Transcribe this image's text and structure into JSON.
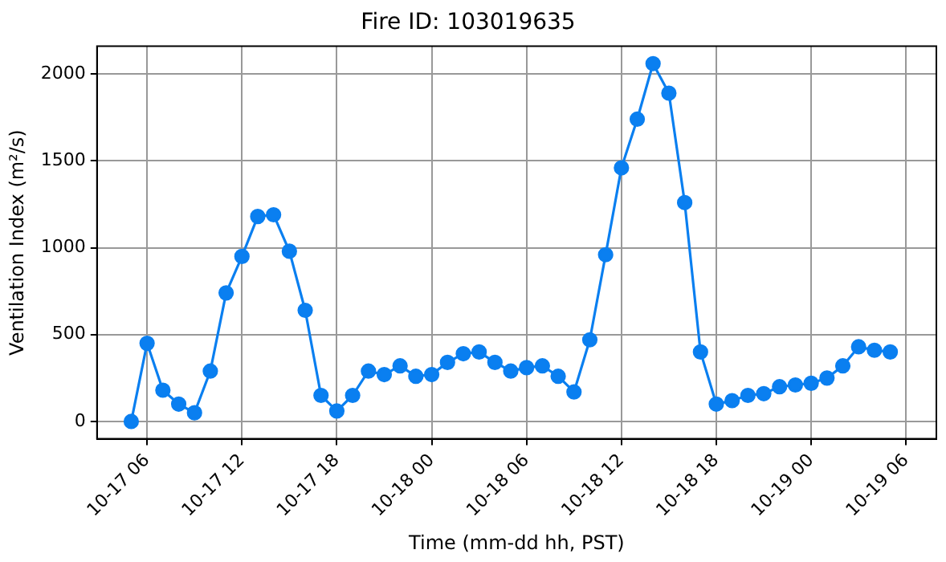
{
  "chart_data": {
    "type": "line",
    "title": "Fire ID: 103019635",
    "xlabel": "Time (mm-dd hh, PST)",
    "ylabel": "Ventilation Index (m²/s)",
    "x": [
      "--10-17T05:00",
      "--10-17T06:00",
      "--10-17T07:00",
      "--10-17T08:00",
      "--10-17T09:00",
      "--10-17T10:00",
      "--10-17T11:00",
      "--10-17T12:00",
      "--10-17T13:00",
      "--10-17T14:00",
      "--10-17T15:00",
      "--10-17T16:00",
      "--10-17T17:00",
      "--10-17T18:00",
      "--10-17T19:00",
      "--10-17T20:00",
      "--10-17T21:00",
      "--10-17T22:00",
      "--10-17T23:00",
      "--10-18T00:00",
      "--10-18T01:00",
      "--10-18T02:00",
      "--10-18T03:00",
      "--10-18T04:00",
      "--10-18T05:00",
      "--10-18T06:00",
      "--10-18T07:00",
      "--10-18T08:00",
      "--10-18T09:00",
      "--10-18T10:00",
      "--10-18T11:00",
      "--10-18T12:00",
      "--10-18T13:00",
      "--10-18T14:00",
      "--10-18T15:00",
      "--10-18T16:00",
      "--10-18T17:00",
      "--10-18T18:00",
      "--10-18T19:00",
      "--10-18T20:00",
      "--10-18T21:00",
      "--10-18T22:00",
      "--10-18T23:00",
      "--10-19T00:00",
      "--10-19T01:00",
      "--10-19T02:00",
      "--10-19T03:00",
      "--10-19T04:00",
      "--10-19T05:00"
    ],
    "series": [
      {
        "color": "#0a7ff0",
        "values": [
          0,
          450,
          180,
          100,
          50,
          290,
          740,
          950,
          1180,
          1190,
          980,
          640,
          150,
          60,
          150,
          290,
          270,
          320,
          260,
          270,
          340,
          390,
          400,
          340,
          290,
          310,
          320,
          260,
          170,
          470,
          960,
          1460,
          1740,
          2060,
          1890,
          1260,
          400,
          100,
          120,
          150,
          160,
          200,
          210,
          220,
          250,
          320,
          430,
          410,
          400
        ]
      }
    ],
    "xlim": [
      "--10-17T02:50",
      "--10-19T07:55"
    ],
    "xticks": [
      {
        "value": "--10-17T06:00",
        "label": "10-17 06"
      },
      {
        "value": "--10-17T12:00",
        "label": "10-17 12"
      },
      {
        "value": "--10-17T18:00",
        "label": "10-17 18"
      },
      {
        "value": "--10-18T00:00",
        "label": "10-18 00"
      },
      {
        "value": "--10-18T06:00",
        "label": "10-18 06"
      },
      {
        "value": "--10-18T12:00",
        "label": "10-18 12"
      },
      {
        "value": "--10-18T18:00",
        "label": "10-18 18"
      },
      {
        "value": "--10-19T00:00",
        "label": "10-19 00"
      },
      {
        "value": "--10-19T06:00",
        "label": "10-19 06"
      }
    ],
    "ylim": [
      -100,
      2160
    ],
    "yticks": [
      0,
      500,
      1000,
      1500,
      2000
    ],
    "grid": true,
    "marker": "circle",
    "line_style": "solid",
    "legend": false
  }
}
